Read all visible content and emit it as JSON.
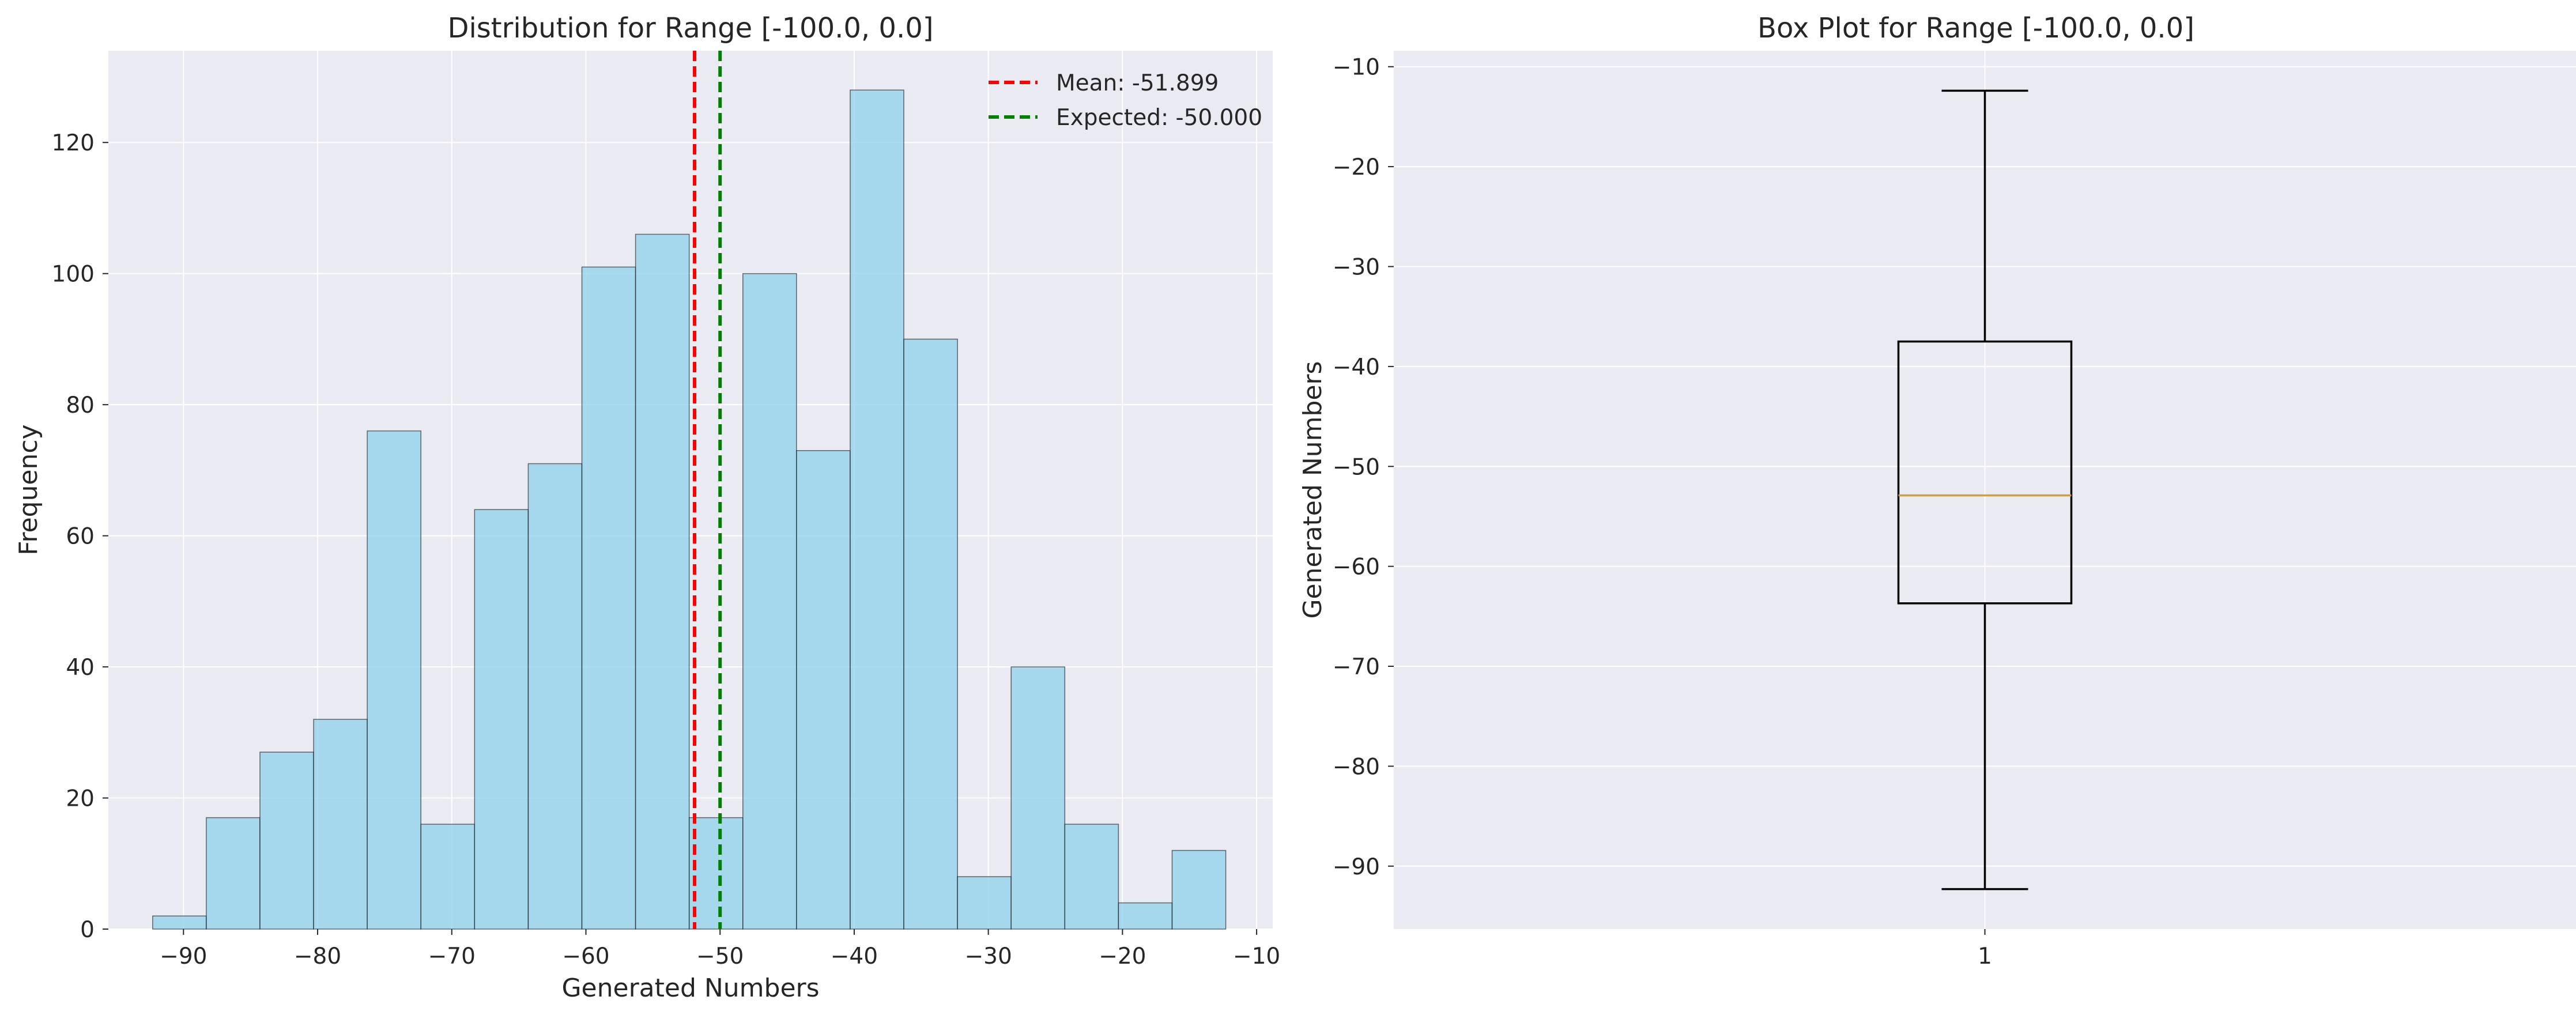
{
  "chart_data": [
    {
      "type": "bar",
      "subtype": "histogram",
      "title": "Distribution for Range [-100.0, 0.0]",
      "xlabel": "Generated Numbers",
      "ylabel": "Frequency",
      "xlim": [
        -95.6,
        -8.8
      ],
      "ylim": [
        0,
        134
      ],
      "xticks": [
        -90,
        -80,
        -70,
        -60,
        -50,
        -40,
        -30,
        -20,
        -10
      ],
      "xtick_labels": [
        "−90",
        "−80",
        "−70",
        "−60",
        "−50",
        "−40",
        "−30",
        "−20",
        "−10"
      ],
      "yticks": [
        0,
        20,
        40,
        60,
        80,
        100,
        120
      ],
      "ytick_labels": [
        "0",
        "20",
        "40",
        "60",
        "80",
        "100",
        "120"
      ],
      "bin_edges": [
        -92.3,
        -88.3,
        -84.3,
        -80.3,
        -76.3,
        -72.3,
        -68.3,
        -64.3,
        -60.3,
        -56.3,
        -52.3,
        -48.3,
        -44.3,
        -40.3,
        -36.3,
        -32.3,
        -28.3,
        -24.3,
        -20.3,
        -16.3,
        -12.3
      ],
      "values": [
        2,
        17,
        27,
        32,
        76,
        16,
        64,
        71,
        101,
        106,
        17,
        100,
        73,
        128,
        90,
        8,
        40,
        16,
        4,
        12
      ],
      "bar_color": "#87ceeb",
      "vlines": [
        {
          "label": "Mean: -51.899",
          "x": -51.899,
          "color": "#ff0000"
        },
        {
          "label": "Expected: -50.000",
          "x": -50.0,
          "color": "#008000"
        }
      ],
      "legend_position": "upper right",
      "grid": true
    },
    {
      "type": "box",
      "title": "Box Plot for Range [-100.0, 0.0]",
      "xlabel": "",
      "ylabel": "Generated Numbers",
      "categories": [
        "1"
      ],
      "ylim": [
        -96.3,
        -8.4
      ],
      "yticks": [
        -90,
        -80,
        -70,
        -60,
        -50,
        -40,
        -30,
        -20,
        -10
      ],
      "ytick_labels": [
        "−90",
        "−80",
        "−70",
        "−60",
        "−50",
        "−40",
        "−30",
        "−20",
        "−10"
      ],
      "box": {
        "whisker_low": -92.3,
        "q1": -63.7,
        "median": -52.9,
        "q3": -37.5,
        "whisker_high": -12.4
      },
      "median_color": "#c8a050",
      "grid": true
    }
  ]
}
